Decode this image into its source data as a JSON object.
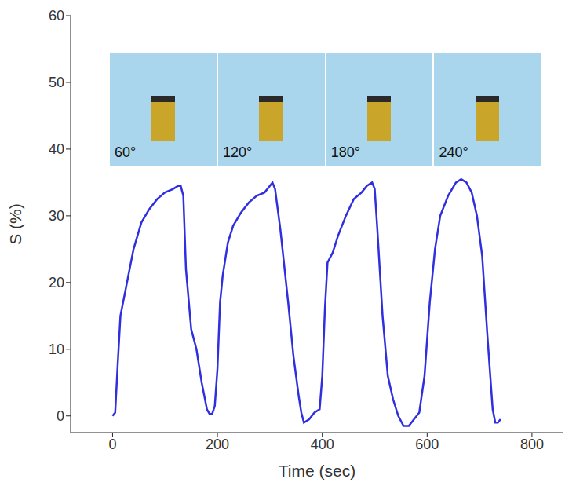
{
  "chart_data": {
    "type": "line",
    "x_label": "Time (sec)",
    "y_label": "S (%)",
    "xlim": [
      -80,
      860
    ],
    "xticks": [
      0,
      200,
      400,
      600,
      800
    ],
    "ylim": [
      -2.5,
      60
    ],
    "yticks": [
      0,
      10,
      20,
      30,
      40,
      50,
      60
    ],
    "grid": false,
    "annotations": [
      "60°",
      "120°",
      "180°",
      "240°"
    ],
    "series": [
      {
        "name": "S",
        "color": "#2f2fe0",
        "x": [
          0,
          5,
          10,
          15,
          25,
          40,
          55,
          70,
          85,
          100,
          115,
          125,
          130,
          135,
          140,
          150,
          160,
          170,
          180,
          185,
          190,
          195,
          200,
          205,
          210,
          220,
          230,
          245,
          260,
          275,
          290,
          300,
          305,
          310,
          320,
          335,
          345,
          355,
          360,
          365,
          375,
          385,
          395,
          400,
          405,
          410,
          420,
          430,
          445,
          460,
          475,
          485,
          495,
          500,
          505,
          515,
          525,
          535,
          545,
          555,
          565,
          575,
          585,
          595,
          605,
          615,
          625,
          640,
          655,
          665,
          675,
          685,
          695,
          705,
          715,
          725,
          730,
          735,
          740
        ],
        "values": [
          0,
          0.5,
          8,
          15,
          19,
          25,
          29,
          31,
          32.5,
          33.5,
          34,
          34.5,
          34.5,
          33,
          22,
          13,
          10,
          5,
          1,
          0.3,
          0.3,
          1.5,
          7,
          17,
          21,
          26,
          28.5,
          30.5,
          32,
          33,
          33.5,
          34.5,
          35,
          34,
          28,
          17,
          9,
          3,
          0.5,
          -1,
          -0.5,
          0.5,
          1,
          6,
          16,
          23,
          24.5,
          27,
          30,
          32.5,
          33.5,
          34.5,
          35,
          34,
          28,
          15,
          6,
          2.5,
          0,
          -1.5,
          -1.5,
          -0.5,
          0.5,
          6,
          17,
          25,
          30,
          33,
          35,
          35.5,
          35,
          33.5,
          30,
          24,
          12,
          1,
          -1,
          -1,
          -0.5
        ]
      }
    ]
  }
}
